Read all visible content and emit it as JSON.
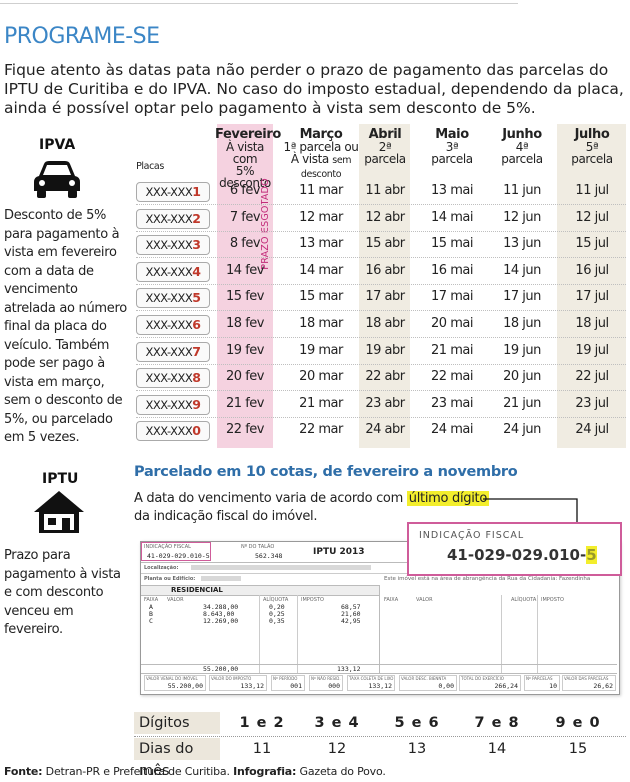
{
  "title": "PROGRAME-SE",
  "intro": "Fique atento às datas pata não perder o prazo de pagamento das parcelas do IPTU de Curitiba e do IPVA. No caso do imposto estadual, dependendo da placa, ainda é possível optar pelo pagamento à vista sem desconto de 5%.",
  "ipva": {
    "label": "IPVA",
    "icon": "car-icon",
    "note": "Desconto de 5% para pagamento à vista em fevereiro com a data de vencimento atrelada ao número final da placa do veículo. Também pode ser pago à vista em março, sem o desconto de 5%, ou parcelado em 5 vezes.",
    "placas_label": "Placas",
    "esgotado": "PRAZO ESGOTADO",
    "columns": [
      {
        "title": "Fevereiro",
        "sub1": "À vista com",
        "sub2": "5% desconto",
        "sub2_small": ""
      },
      {
        "title": "Março",
        "sub1": "1ª parcela ou",
        "sub2": "À vista ",
        "sub2_small": "sem desconto"
      },
      {
        "title": "Abril",
        "sub1": "2ª",
        "sub2": "parcela",
        "sub2_small": ""
      },
      {
        "title": "Maio",
        "sub1": "3ª",
        "sub2": "parcela",
        "sub2_small": ""
      },
      {
        "title": "Junho",
        "sub1": "4ª",
        "sub2": "parcela",
        "sub2_small": ""
      },
      {
        "title": "Julho",
        "sub1": "5ª",
        "sub2": "parcela",
        "sub2_small": ""
      }
    ],
    "rows": [
      {
        "plate": "XXX-XXX",
        "digit": "1",
        "dates": [
          "6 fev",
          "11 mar",
          "11 abr",
          "13 mai",
          "11 jun",
          "11 jul"
        ]
      },
      {
        "plate": "XXX-XXX",
        "digit": "2",
        "dates": [
          "7 fev",
          "12 mar",
          "12 abr",
          "14 mai",
          "12 jun",
          "12 jul"
        ]
      },
      {
        "plate": "XXX-XXX",
        "digit": "3",
        "dates": [
          "8 fev",
          "13 mar",
          "15 abr",
          "15 mai",
          "13 jun",
          "15 jul"
        ]
      },
      {
        "plate": "XXX-XXX",
        "digit": "4",
        "dates": [
          "14 fev",
          "14 mar",
          "16 abr",
          "16 mai",
          "14 jun",
          "16 jul"
        ]
      },
      {
        "plate": "XXX-XXX",
        "digit": "5",
        "dates": [
          "15 fev",
          "15 mar",
          "17 abr",
          "17 mai",
          "17 jun",
          "17 jul"
        ]
      },
      {
        "plate": "XXX-XXX",
        "digit": "6",
        "dates": [
          "18 fev",
          "18 mar",
          "18 abr",
          "20 mai",
          "18 jun",
          "18 jul"
        ]
      },
      {
        "plate": "XXX-XXX",
        "digit": "7",
        "dates": [
          "19 fev",
          "19 mar",
          "19 abr",
          "21 mai",
          "19 jun",
          "19 jul"
        ]
      },
      {
        "plate": "XXX-XXX",
        "digit": "8",
        "dates": [
          "20 fev",
          "20 mar",
          "22 abr",
          "22 mai",
          "20 jun",
          "22 jul"
        ]
      },
      {
        "plate": "XXX-XXX",
        "digit": "9",
        "dates": [
          "21 fev",
          "21 mar",
          "23 abr",
          "23 mai",
          "21 jun",
          "23 jul"
        ]
      },
      {
        "plate": "XXX-XXX",
        "digit": "0",
        "dates": [
          "22 fev",
          "22 mar",
          "24 abr",
          "24 mai",
          "24 jun",
          "24 jul"
        ]
      }
    ]
  },
  "iptu": {
    "label": "IPTU",
    "icon": "house-icon",
    "note": "Prazo para pagamento à vista e com desconto venceu em fevereiro.",
    "heading": "Parcelado em 10 cotas, de fevereiro a novembro",
    "sub_before": "A data do vencimento varia de acordo com ",
    "sub_highlight": "último dígito",
    "sub_after": "da indicação fiscal do imóvel.",
    "zoom_label": "INDICAÇÃO FISCAL",
    "zoom_value": "41-029-029.010-",
    "zoom_digit": "5",
    "doc": {
      "ind_label": "INDICAÇÃO FISCAL",
      "ind_value": "41-029-029.010-5",
      "talao_label": "Nº DO TALÃO",
      "talao_value": "562.348",
      "iptu_year": "IPTU  2013",
      "localizacao": "Localização:",
      "planta": "Planta ou Edifício:",
      "area_text": "Este imóvel está na área de abrangência da Rua da Cidadania: Fazendinha",
      "residencial": "RESIDENCIAL",
      "faixa": "FAIXA",
      "valor": "VALOR",
      "aliquota": "ALÍQUOTA",
      "imposto": "IMPOSTO",
      "faixas": [
        "A",
        "B",
        "C"
      ],
      "valores": [
        "34.288,00",
        "8.643,00",
        "12.269,00"
      ],
      "aliquotas": [
        "0,20",
        "0,25",
        "0,35"
      ],
      "impostos": [
        "68,57",
        "21,60",
        "42,95"
      ],
      "total_valor": "55.200,00",
      "total_imposto": "133,12",
      "f1_label": "VALOR VENAL DO IMÓVEL",
      "f1_value": "55.200,00",
      "f2_label": "VALOR DO IMPOSTO",
      "f2_value": "133,12",
      "f3_label": "Nº PERÍODO",
      "f3_value": "001",
      "f4_label": "Nº NÃO RESID.",
      "f4_value": "000",
      "f5_label": "TAXA COLETA DE LIXO",
      "f5_value": "133,12",
      "f6_label": "VALOR DESC. BIENNTA",
      "f6_value": "0,00",
      "f7_label": "TOTAL DO EXERCÍCIO",
      "f7_value": "266,24",
      "f8_label": "Nº PARCELAS",
      "f8_value": "10",
      "f9_label": "VALOR DAS PARCELAS",
      "f9_value": "26,62"
    },
    "table": {
      "digits_label": "Dígitos",
      "days_label": "Dias do mês",
      "digits": [
        "1 e 2",
        "3 e 4",
        "5 e 6",
        "7 e 8",
        "9 e 0"
      ],
      "days": [
        "11",
        "12",
        "13",
        "14",
        "15"
      ]
    }
  },
  "source_bold1": "Fonte:",
  "source_text1": " Detran-PR e Prefeitura de Curitiba. ",
  "source_bold2": "Infografia:",
  "source_text2": " Gazeta do Povo.",
  "colors": {
    "title": "#3b86c6",
    "highlight": "#f3ee2c",
    "pink": "#f5d2e0",
    "beige": "#f0ece2",
    "digit": "#c0392b"
  }
}
